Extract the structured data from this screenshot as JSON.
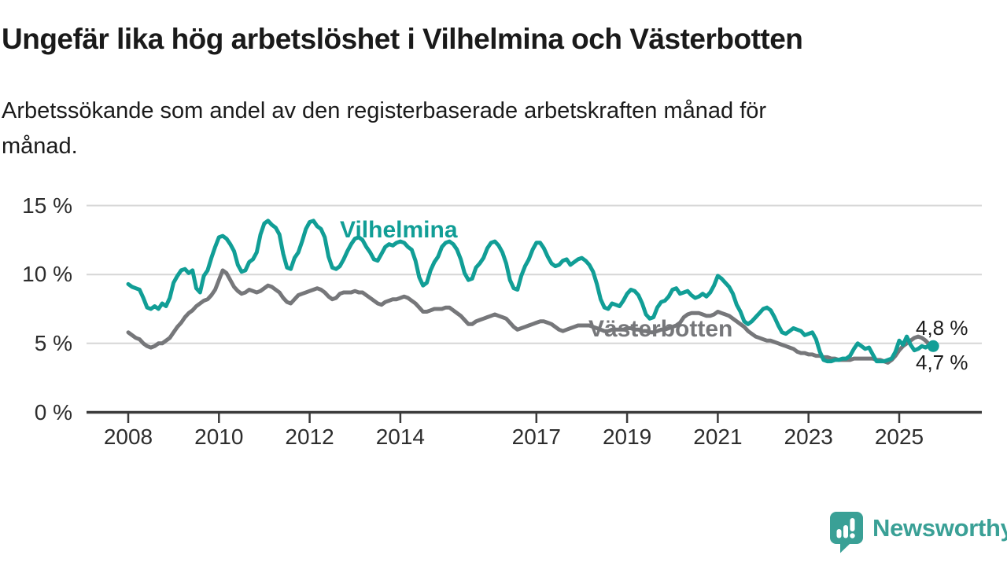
{
  "header": {
    "title": "Ungefär lika hög arbetslöshet i Vilhelmina och Västerbotten",
    "subtitle_full": "Arbetssökande som andel av den registerbaserade arbetskraften månad för månad.",
    "subtitle_line1": "Arbetssökande som andel av den registerbaserade arbetskraften månad för",
    "subtitle_line2": "månad."
  },
  "branding": {
    "logo_text": "Newsworthy",
    "logo_icon": "speech-bubble-bar-chart-icon",
    "logo_color": "#3aa096"
  },
  "colors": {
    "series_vilhelmina": "#119e96",
    "series_vasterbotten": "#76777a",
    "gridline": "#d6d6d6",
    "axis": "#3b3b3b",
    "text": "#2d2d2d"
  },
  "chart_data": {
    "type": "line",
    "title": "Ungefär lika hög arbetslöshet i Vilhelmina och Västerbotten",
    "subtitle": "Arbetssökande som andel av den registerbaserade arbetskraften månad för månad.",
    "frequency": "monthly",
    "x_start_year": 2008,
    "x_end": "2025-10",
    "ylim": [
      0,
      15
    ],
    "grid": "horizontal-only",
    "y_axis": {
      "tick_values": [
        0,
        5,
        10,
        15
      ],
      "tick_labels": [
        "0 %",
        "5 %",
        "10 %",
        "15 %"
      ],
      "gridline_values": [
        5,
        10,
        15
      ]
    },
    "x_axis": {
      "tick_years": [
        2008,
        2010,
        2012,
        2014,
        2017,
        2019,
        2021,
        2023,
        2025
      ],
      "tick_labels": [
        "2008",
        "2010",
        "2012",
        "2014",
        "2017",
        "2019",
        "2021",
        "2023",
        "2025"
      ]
    },
    "series": [
      {
        "name": "Vilhelmina",
        "color": "#119e96",
        "end_label": "4,8 %",
        "end_dot": true,
        "values": [
          9.3,
          9.1,
          9.0,
          8.9,
          8.3,
          7.6,
          7.5,
          7.7,
          7.5,
          7.9,
          7.7,
          8.3,
          9.4,
          9.9,
          10.3,
          10.4,
          10.1,
          10.3,
          9.0,
          8.7,
          9.9,
          10.3,
          11.2,
          12.0,
          12.7,
          12.8,
          12.6,
          12.2,
          11.7,
          10.7,
          10.2,
          10.3,
          10.9,
          11.1,
          11.6,
          12.9,
          13.7,
          13.9,
          13.6,
          13.4,
          12.9,
          11.5,
          10.5,
          10.4,
          11.2,
          11.6,
          12.4,
          13.3,
          13.8,
          13.9,
          13.5,
          13.3,
          12.7,
          11.3,
          10.5,
          10.4,
          10.6,
          11.1,
          11.7,
          12.2,
          12.6,
          12.7,
          12.5,
          12.0,
          11.6,
          11.1,
          11.0,
          11.5,
          12.0,
          12.2,
          12.1,
          12.3,
          12.4,
          12.3,
          12.0,
          11.8,
          11.0,
          9.8,
          9.2,
          9.4,
          10.3,
          10.9,
          11.3,
          12.0,
          12.3,
          12.4,
          12.2,
          11.8,
          11.1,
          10.1,
          9.6,
          9.7,
          10.5,
          10.8,
          11.2,
          11.9,
          12.3,
          12.4,
          12.1,
          11.6,
          10.8,
          9.6,
          9.0,
          8.9,
          9.9,
          10.6,
          11.1,
          11.8,
          12.3,
          12.3,
          11.9,
          11.3,
          10.8,
          10.6,
          10.7,
          11.0,
          11.1,
          10.7,
          10.9,
          11.1,
          11.2,
          11.0,
          10.7,
          10.2,
          9.3,
          8.2,
          7.6,
          7.5,
          7.9,
          7.8,
          7.7,
          8.1,
          8.6,
          8.9,
          8.8,
          8.5,
          7.9,
          7.1,
          6.8,
          6.9,
          7.6,
          8.0,
          8.1,
          8.4,
          8.9,
          9.0,
          8.6,
          8.7,
          8.8,
          8.5,
          8.3,
          8.4,
          8.6,
          8.4,
          8.7,
          9.2,
          9.9,
          9.7,
          9.4,
          9.1,
          8.6,
          7.8,
          7.3,
          6.6,
          6.4,
          6.6,
          6.9,
          7.2,
          7.5,
          7.6,
          7.4,
          6.9,
          6.3,
          5.8,
          5.7,
          5.9,
          6.1,
          6.0,
          5.9,
          5.6,
          5.7,
          5.8,
          5.3,
          4.4,
          3.8,
          3.7,
          3.7,
          3.8,
          3.8,
          3.9,
          3.9,
          4.1,
          4.6,
          5.0,
          4.8,
          4.6,
          4.7,
          4.2,
          3.7,
          3.7,
          3.7,
          3.8,
          3.9,
          4.4,
          5.2,
          4.9,
          5.5,
          4.9,
          4.5,
          4.6,
          4.8,
          4.7,
          4.9,
          4.8
        ]
      },
      {
        "name": "Västerbotten",
        "color": "#76777a",
        "end_label": "4,7 %",
        "end_dot": false,
        "values": [
          5.8,
          5.6,
          5.4,
          5.3,
          5.0,
          4.8,
          4.7,
          4.8,
          5.0,
          5.0,
          5.2,
          5.4,
          5.8,
          6.2,
          6.5,
          6.9,
          7.2,
          7.4,
          7.7,
          7.9,
          8.1,
          8.2,
          8.5,
          8.9,
          9.6,
          10.3,
          10.1,
          9.6,
          9.1,
          8.8,
          8.6,
          8.7,
          8.9,
          8.8,
          8.7,
          8.8,
          9.0,
          9.2,
          9.1,
          8.9,
          8.7,
          8.3,
          8.0,
          7.9,
          8.2,
          8.5,
          8.6,
          8.7,
          8.8,
          8.9,
          9.0,
          8.9,
          8.7,
          8.4,
          8.2,
          8.3,
          8.6,
          8.7,
          8.7,
          8.7,
          8.8,
          8.7,
          8.7,
          8.5,
          8.3,
          8.1,
          7.9,
          7.8,
          8.0,
          8.1,
          8.2,
          8.2,
          8.3,
          8.4,
          8.3,
          8.1,
          7.9,
          7.6,
          7.3,
          7.3,
          7.4,
          7.5,
          7.5,
          7.5,
          7.6,
          7.6,
          7.4,
          7.2,
          7.0,
          6.7,
          6.4,
          6.4,
          6.6,
          6.7,
          6.8,
          6.9,
          7.0,
          7.1,
          7.0,
          6.9,
          6.8,
          6.5,
          6.2,
          6.0,
          6.1,
          6.2,
          6.3,
          6.4,
          6.5,
          6.6,
          6.6,
          6.5,
          6.4,
          6.2,
          6.0,
          5.9,
          6.0,
          6.1,
          6.2,
          6.3,
          6.3,
          6.3,
          6.3,
          6.2,
          6.1,
          6.0,
          5.9,
          5.9,
          6.0,
          6.0,
          6.0,
          6.0,
          6.1,
          6.1,
          6.0,
          6.0,
          5.9,
          5.9,
          5.8,
          5.8,
          5.9,
          6.0,
          6.0,
          6.1,
          6.2,
          6.3,
          6.5,
          6.9,
          7.1,
          7.2,
          7.2,
          7.2,
          7.1,
          7.0,
          7.0,
          7.1,
          7.3,
          7.2,
          7.1,
          7.0,
          6.8,
          6.6,
          6.4,
          6.2,
          5.9,
          5.7,
          5.5,
          5.4,
          5.3,
          5.2,
          5.2,
          5.1,
          5.0,
          4.9,
          4.8,
          4.7,
          4.6,
          4.4,
          4.3,
          4.3,
          4.2,
          4.2,
          4.1,
          4.1,
          4.0,
          4.0,
          3.9,
          3.9,
          3.8,
          3.8,
          3.8,
          3.8,
          3.9,
          3.9,
          3.9,
          3.9,
          3.9,
          3.9,
          3.8,
          3.8,
          3.7,
          3.6,
          3.8,
          4.1,
          4.5,
          4.8,
          5.0,
          5.2,
          5.4,
          5.5,
          5.4,
          5.2,
          4.9,
          4.7
        ]
      }
    ]
  }
}
